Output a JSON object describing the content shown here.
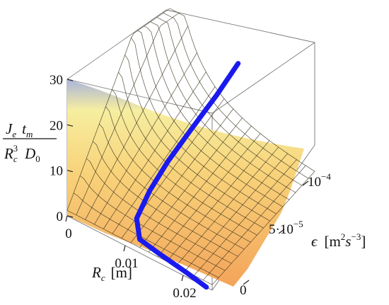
{
  "chart_data": {
    "type": "surface",
    "z_axis": {
      "label_num": [
        "J",
        "e",
        "t",
        "m"
      ],
      "label_den": [
        "R",
        "c",
        "3",
        "D",
        "0"
      ],
      "ticks": [
        "0",
        "10",
        "20",
        "30"
      ],
      "values": [
        0,
        10,
        20,
        30
      ],
      "range": [
        0,
        30
      ]
    },
    "x_axis": {
      "label": [
        "R",
        "c",
        "[m]"
      ],
      "ticks": [
        "0",
        "0.01",
        "0.02"
      ],
      "values": [
        0,
        0.01,
        0.02
      ],
      "range": [
        0,
        0.025
      ]
    },
    "y_axis": {
      "label": [
        "ϵ",
        "[m",
        "2",
        "s",
        "−3",
        "]"
      ],
      "ticks": [
        "0",
        "5·10",
        "−5",
        "10",
        "−4"
      ],
      "values": [
        0,
        5e-05,
        0.0001
      ],
      "range": [
        0,
        0.00012
      ]
    },
    "surface_color_top": "#f6eea0",
    "surface_color_bottom": "#f3a45a",
    "surface_color_back": "#aab4dc",
    "curve_color": "#1a1aee",
    "curve": {
      "x": [
        0.024,
        0.0205,
        0.016,
        0.0125,
        0.0105,
        0.0098,
        0.01,
        0.011,
        0.0125,
        0.014
      ],
      "y": [
        0.0,
        0.0,
        0.0,
        0.0,
        1e-05,
        3e-05,
        5e-05,
        7e-05,
        9e-05,
        0.000105
      ],
      "z": [
        0,
        1,
        2,
        3,
        5,
        8,
        12,
        17,
        23,
        29
      ]
    }
  }
}
